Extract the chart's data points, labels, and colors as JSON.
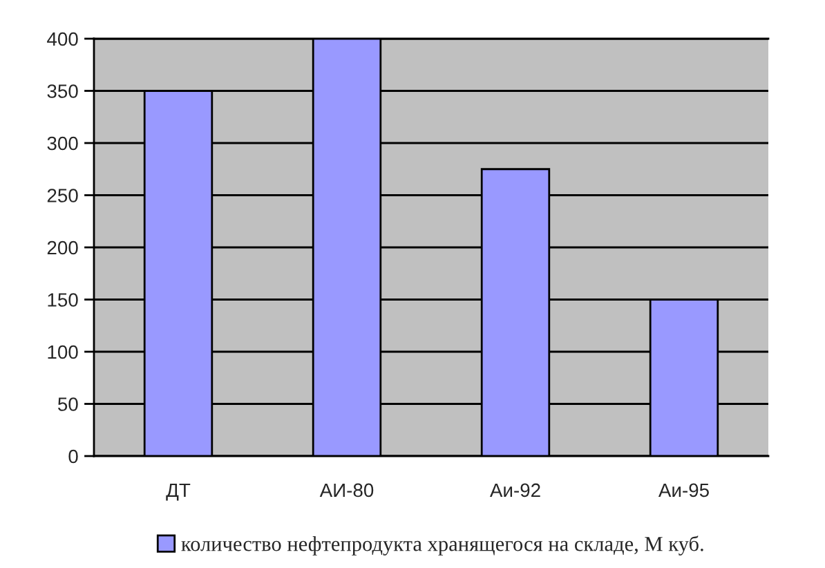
{
  "chart_data": {
    "type": "bar",
    "categories": [
      "ДТ",
      "АИ-80",
      "Аи-92",
      "Аи-95"
    ],
    "series": [
      {
        "name": "количество нефтепродукта хранящегося на складе, М куб.",
        "color": "#9999ff",
        "values": [
          350,
          400,
          275,
          150
        ]
      }
    ],
    "ylim": [
      0,
      400
    ],
    "yticks": [
      0,
      50,
      100,
      150,
      200,
      250,
      300,
      350,
      400
    ],
    "grid": "y",
    "legend": "bottom"
  }
}
